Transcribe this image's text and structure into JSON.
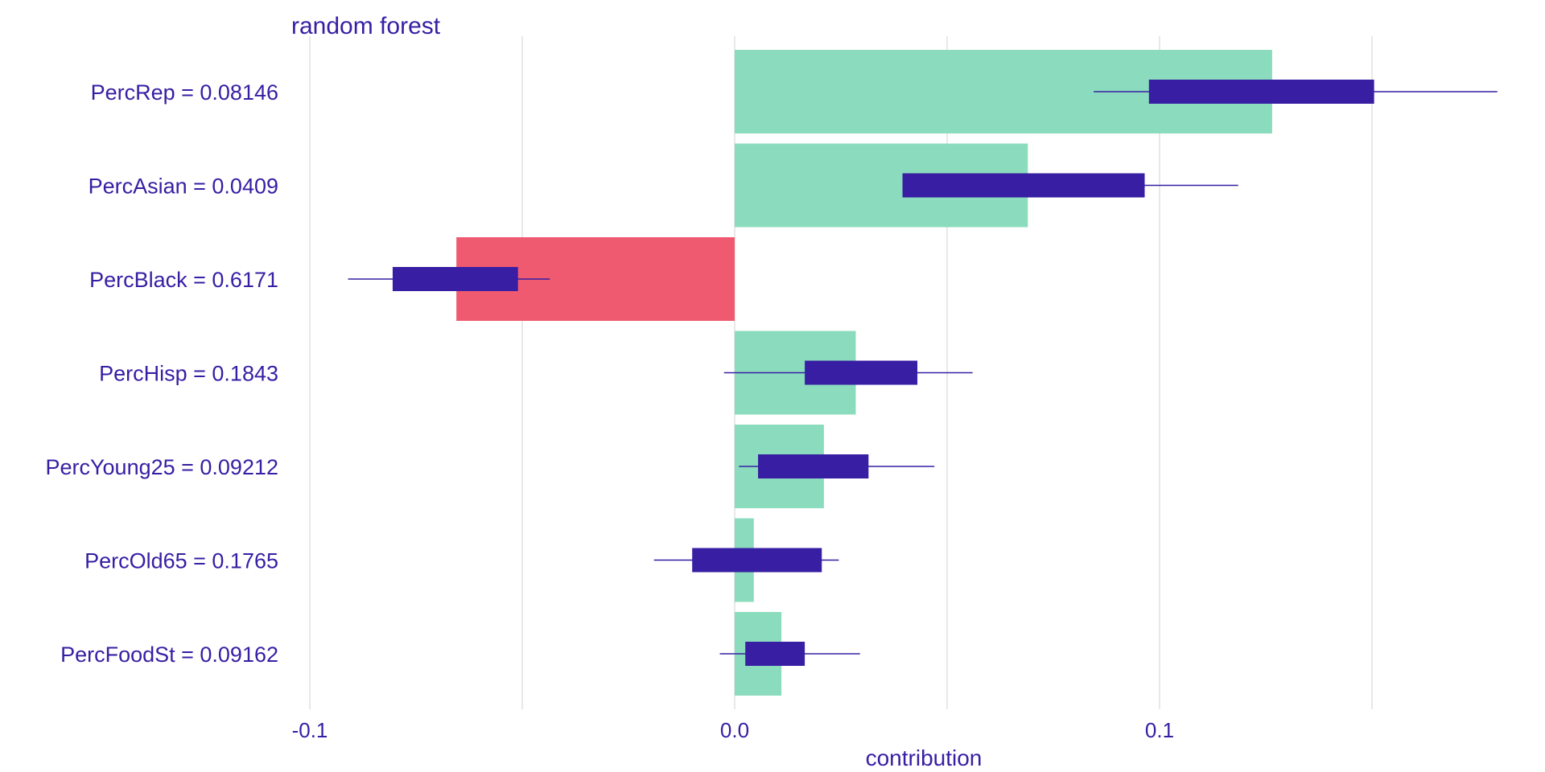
{
  "chart_data": {
    "type": "bar",
    "title": "random forest",
    "xlabel": "contribution",
    "ylabel": "",
    "xlim": [
      -0.1,
      0.19
    ],
    "x_ticks": [
      -0.1,
      0.0,
      0.1
    ],
    "x_tick_labels": [
      "-0.1",
      "0.0",
      "0.1"
    ],
    "grid": true,
    "grid_values": [
      -0.1,
      -0.05,
      0.0,
      0.05,
      0.1,
      0.15
    ],
    "categories": [
      "PercRep = 0.08146",
      "PercAsian = 0.0409",
      "PercBlack = 0.6171",
      "PercHisp = 0.1843",
      "PercYoung25 = 0.09212",
      "PercOld65 = 0.1765",
      "PercFoodSt = 0.09162"
    ],
    "values": [
      0.1265,
      0.069,
      -0.0655,
      0.0285,
      0.021,
      0.0045,
      0.011
    ],
    "boxplots": [
      {
        "min": 0.0845,
        "q1": 0.0975,
        "q3": 0.1505,
        "max": 0.1795
      },
      {
        "min": 0.0395,
        "q1": 0.0395,
        "q3": 0.0965,
        "max": 0.1185
      },
      {
        "min": -0.091,
        "q1": -0.0805,
        "q3": -0.051,
        "max": -0.0435
      },
      {
        "min": -0.0025,
        "q1": 0.0165,
        "q3": 0.043,
        "max": 0.056
      },
      {
        "min": 0.001,
        "q1": 0.0055,
        "q3": 0.0315,
        "max": 0.047
      },
      {
        "min": -0.019,
        "q1": -0.01,
        "q3": 0.0205,
        "max": 0.0245
      },
      {
        "min": -0.0035,
        "q1": 0.0025,
        "q3": 0.0165,
        "max": 0.0295
      }
    ],
    "colors": {
      "positive": "#8bdcbe",
      "negative": "#f05a71",
      "boxplot": "#371ea3",
      "text": "#371ea3",
      "grid": "#e0e0e0"
    }
  }
}
